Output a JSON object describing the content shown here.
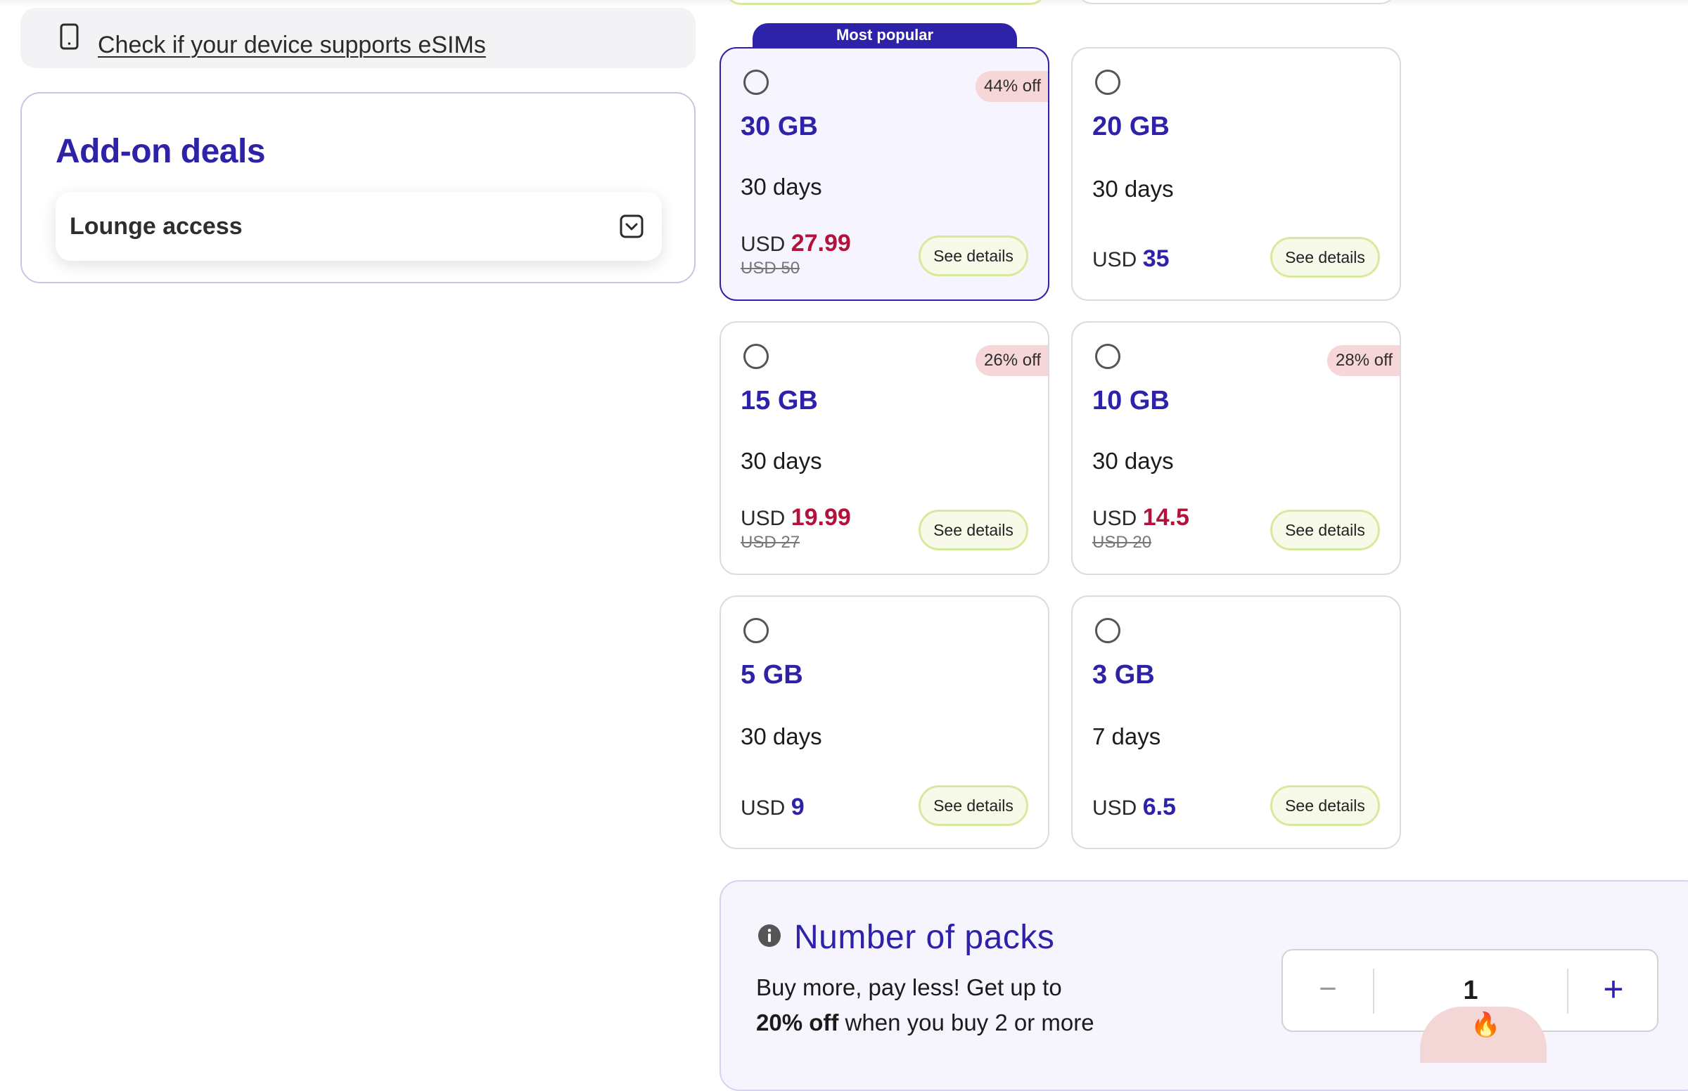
{
  "colors": {
    "brand": "#2e22a8",
    "sale_price": "#b3123b",
    "discount_badge_bg": "#f6d6d6",
    "details_button_border": "#d6ea9e",
    "selected_card_bg": "#f6f5ff"
  },
  "esim_check": {
    "icon": "phone-icon",
    "link_text": "Check if your device supports eSIMs"
  },
  "addons": {
    "title": "Add-on deals",
    "items": [
      {
        "label": "Lounge access",
        "icon": "chevron-down-icon",
        "expanded": false
      }
    ]
  },
  "plans": [
    {
      "data": "30 GB",
      "duration": "30 days",
      "currency": "USD",
      "price": "27.99",
      "original_price": "USD 50",
      "discount": "44% off",
      "ribbon": "Most popular",
      "selected": true,
      "details_label": "See details"
    },
    {
      "data": "20 GB",
      "duration": "30 days",
      "currency": "USD",
      "price": "35",
      "original_price": "",
      "discount": "",
      "ribbon": "",
      "selected": false,
      "details_label": "See details"
    },
    {
      "data": "15 GB",
      "duration": "30 days",
      "currency": "USD",
      "price": "19.99",
      "original_price": "USD 27",
      "discount": "26% off",
      "ribbon": "",
      "selected": false,
      "details_label": "See details"
    },
    {
      "data": "10 GB",
      "duration": "30 days",
      "currency": "USD",
      "price": "14.5",
      "original_price": "USD 20",
      "discount": "28% off",
      "ribbon": "",
      "selected": false,
      "details_label": "See details"
    },
    {
      "data": "5 GB",
      "duration": "30 days",
      "currency": "USD",
      "price": "9",
      "original_price": "",
      "discount": "",
      "ribbon": "",
      "selected": false,
      "details_label": "See details"
    },
    {
      "data": "3 GB",
      "duration": "7 days",
      "currency": "USD",
      "price": "6.5",
      "original_price": "",
      "discount": "",
      "ribbon": "",
      "selected": false,
      "details_label": "See details"
    }
  ],
  "packs": {
    "title": "Number of packs",
    "info_icon": "info-icon",
    "desc_lead": "Buy more, pay less! Get up to",
    "desc_bold": "20% off",
    "desc_tail": "when you buy 2 or more",
    "minus_label": "−",
    "quantity": "1",
    "plus_label": "+",
    "badge_icon": "fire-icon",
    "badge_emoji": "🔥"
  }
}
